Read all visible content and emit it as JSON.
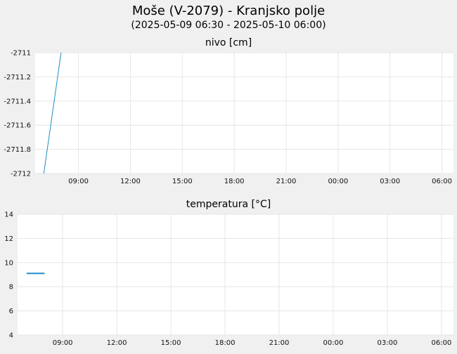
{
  "header": {
    "title": "Moše (V-2079) - Kranjsko polje",
    "subtitle": "(2025-05-09 06:30 - 2025-05-10 06:00)"
  },
  "colors": {
    "series": "#1f8fc9",
    "grid": "#e6e6e6",
    "background": "#f0f0f0",
    "plot_background": "#ffffff"
  },
  "chart_data": [
    {
      "type": "line",
      "title": "nivo [cm]",
      "x_type": "datetime",
      "xlim": [
        "2025-05-09 06:30",
        "2025-05-10 06:40"
      ],
      "x_ticks": [
        "2025-05-09 09:00",
        "2025-05-09 12:00",
        "2025-05-09 15:00",
        "2025-05-09 18:00",
        "2025-05-09 21:00",
        "2025-05-10 00:00",
        "2025-05-10 03:00",
        "2025-05-10 06:00"
      ],
      "x_tick_labels": [
        "09:00",
        "12:00",
        "15:00",
        "18:00",
        "21:00",
        "00:00",
        "03:00",
        "06:00"
      ],
      "ylim": [
        -2712,
        -2711
      ],
      "y_ticks": [
        -2712,
        -2711.8,
        -2711.6,
        -2711.4,
        -2711.2,
        -2711
      ],
      "y_tick_labels": [
        "-2712",
        "-2711.8",
        "-2711.6",
        "-2711.4",
        "-2711.2",
        "-2711"
      ],
      "grid": true,
      "series": [
        {
          "x": [
            "2025-05-09 07:00",
            "2025-05-09 08:00"
          ],
          "y": [
            -2712.0,
            -2711.0
          ]
        }
      ]
    },
    {
      "type": "line",
      "title": "temperatura [°C]",
      "x_type": "datetime",
      "xlim": [
        "2025-05-09 06:30",
        "2025-05-10 06:40"
      ],
      "x_ticks": [
        "2025-05-09 09:00",
        "2025-05-09 12:00",
        "2025-05-09 15:00",
        "2025-05-09 18:00",
        "2025-05-09 21:00",
        "2025-05-10 00:00",
        "2025-05-10 03:00",
        "2025-05-10 06:00"
      ],
      "x_tick_labels": [
        "09:00",
        "12:00",
        "15:00",
        "18:00",
        "21:00",
        "00:00",
        "03:00",
        "06:00"
      ],
      "ylim": [
        4,
        14
      ],
      "y_ticks": [
        4,
        6,
        8,
        10,
        12,
        14
      ],
      "y_tick_labels": [
        "4",
        "6",
        "8",
        "10",
        "12",
        "14"
      ],
      "grid": true,
      "series": [
        {
          "x": [
            "2025-05-09 07:00",
            "2025-05-09 08:00"
          ],
          "y": [
            9.1,
            9.1
          ]
        }
      ]
    }
  ]
}
